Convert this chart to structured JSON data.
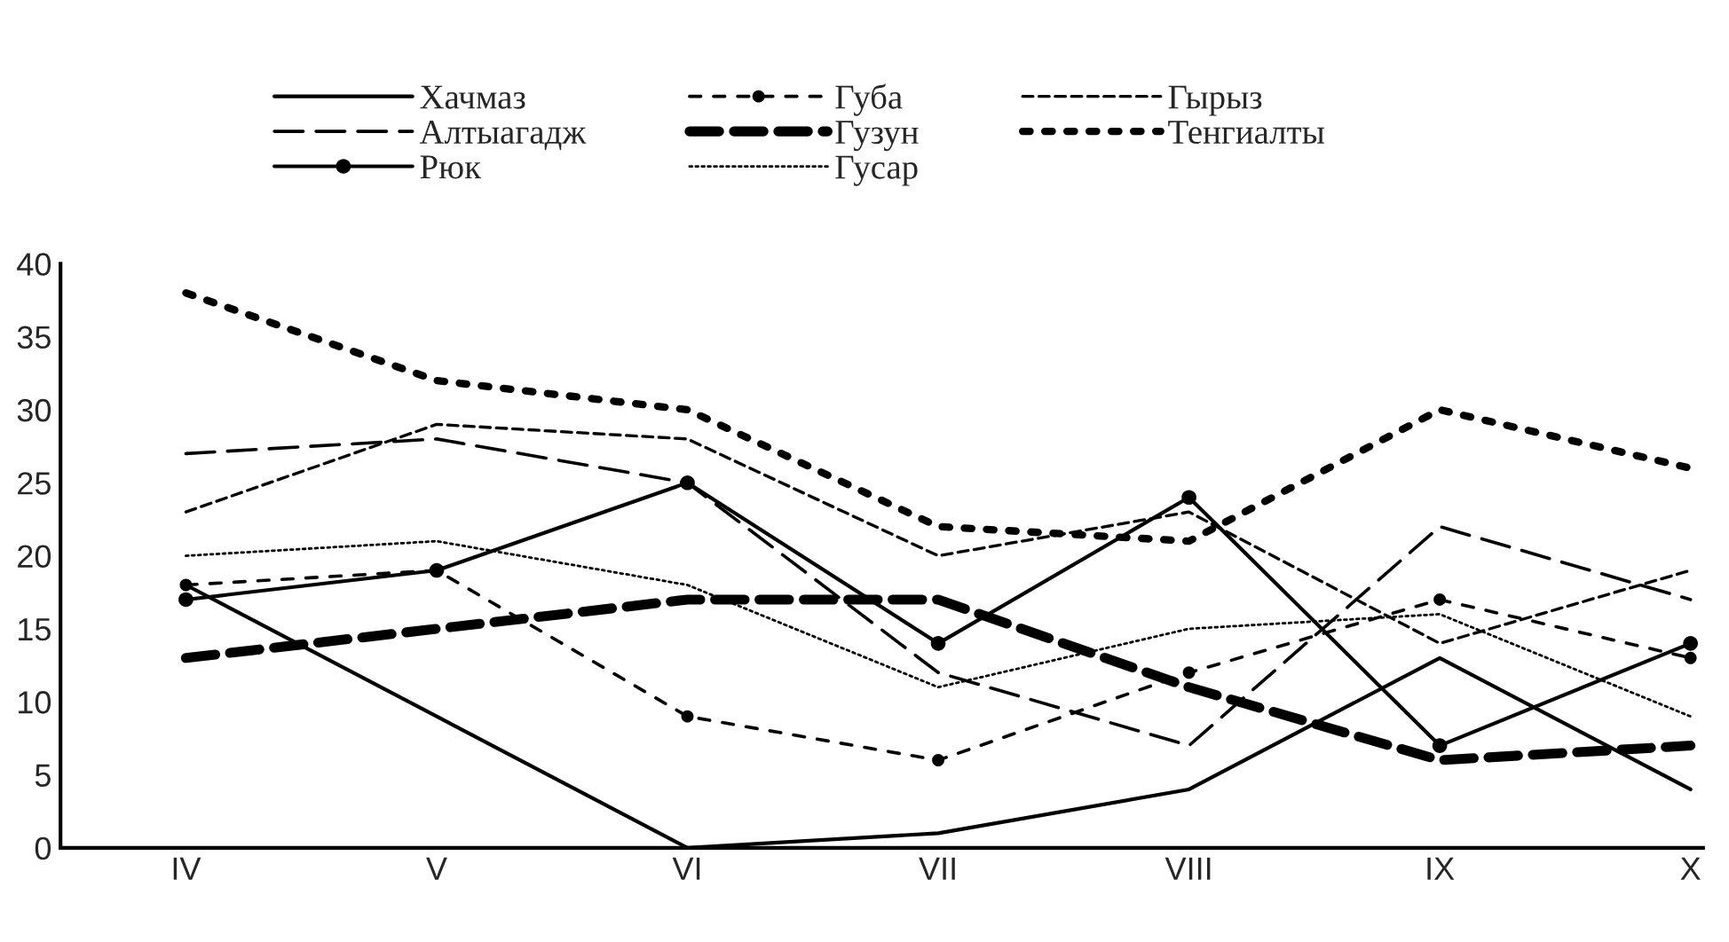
{
  "chart_data": {
    "type": "line",
    "categories": [
      "IV",
      "V",
      "VI",
      "VII",
      "VIII",
      "IX",
      "X"
    ],
    "ylim": [
      0,
      40
    ],
    "yticks": [
      0,
      5,
      10,
      15,
      20,
      25,
      30,
      35,
      40
    ],
    "grid": false,
    "legend": "top",
    "series": [
      {
        "name": "Хачмаз",
        "color": "#000000",
        "line_style": "solid",
        "marker": "none",
        "values": [
          18,
          9,
          0,
          1,
          4,
          13,
          4
        ]
      },
      {
        "name": "Алтыагадж",
        "color": "#000000",
        "line_style": "dashed",
        "marker": "none",
        "values": [
          27,
          28,
          25,
          12,
          7,
          22,
          17
        ]
      },
      {
        "name": "Рюк",
        "color": "#000000",
        "line_style": "solid",
        "marker": "circle",
        "values": [
          17,
          19,
          25,
          14,
          24,
          7,
          14
        ]
      },
      {
        "name": "Губа",
        "color": "#000000",
        "line_style": "dashed",
        "marker": "circle",
        "values": [
          18,
          19,
          9,
          6,
          12,
          17,
          13
        ]
      },
      {
        "name": "Гузун",
        "color": "#000000",
        "line_style": "dashed",
        "marker": "none",
        "values": [
          13,
          15,
          17,
          17,
          11,
          6,
          7
        ]
      },
      {
        "name": "Гусар",
        "color": "#000000",
        "line_style": "dotted",
        "marker": "none",
        "values": [
          20,
          21,
          18,
          11,
          15,
          16,
          9
        ]
      },
      {
        "name": "Гырыз",
        "color": "#000000",
        "line_style": "dashed",
        "marker": "none",
        "values": [
          23,
          29,
          28,
          20,
          23,
          14,
          19
        ]
      },
      {
        "name": "Тенгиалты",
        "color": "#000000",
        "line_style": "dotted",
        "marker": "none",
        "values": [
          38,
          32,
          30,
          22,
          21,
          30,
          26
        ]
      }
    ]
  }
}
